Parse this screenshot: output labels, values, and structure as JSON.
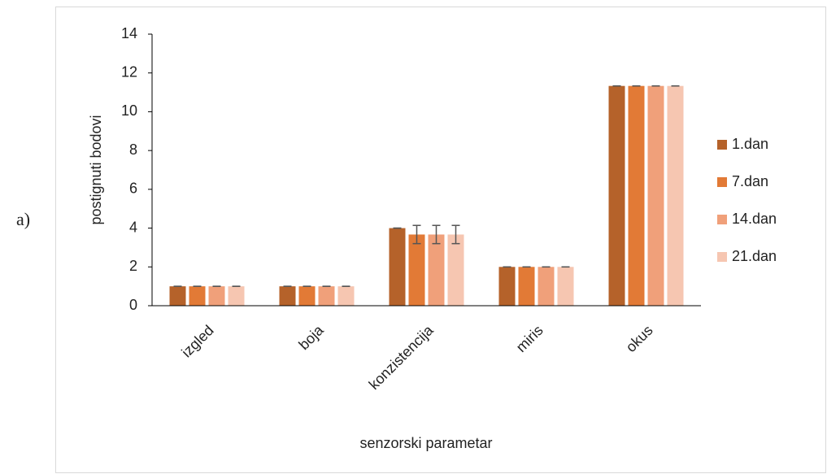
{
  "side_label": "a)",
  "chart_data": {
    "type": "bar",
    "x_label": "senzorski parametar",
    "y_label": "postignuti bodovi",
    "categories": [
      "izgled",
      "boja",
      "konzistencija",
      "miris",
      "okus"
    ],
    "series": [
      {
        "name": "1.dan",
        "color": "#b5622a",
        "values": [
          1,
          1,
          4,
          2,
          11.33
        ],
        "errors": [
          0,
          0,
          0,
          0,
          0
        ]
      },
      {
        "name": "7.dan",
        "color": "#e27a36",
        "values": [
          1,
          1,
          3.67,
          2,
          11.33
        ],
        "errors": [
          0,
          0,
          0.47,
          0,
          0
        ]
      },
      {
        "name": "14.dan",
        "color": "#f0a07a",
        "values": [
          1,
          1,
          3.67,
          2,
          11.33
        ],
        "errors": [
          0,
          0,
          0.47,
          0,
          0
        ]
      },
      {
        "name": "21.dan",
        "color": "#f6c6b1",
        "values": [
          1,
          1,
          3.67,
          2,
          11.33
        ],
        "errors": [
          0,
          0,
          0.47,
          0,
          0
        ]
      }
    ],
    "ylim": [
      0,
      14
    ],
    "yticks": [
      0,
      2,
      4,
      6,
      8,
      10,
      12,
      14
    ],
    "legend": "right"
  }
}
